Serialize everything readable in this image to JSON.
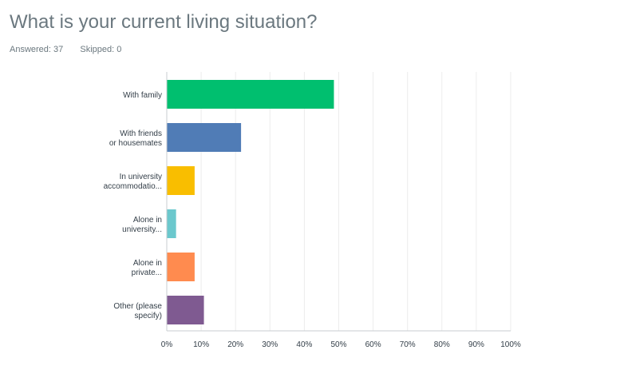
{
  "question": {
    "title": "What is your current living situation?"
  },
  "stats": {
    "answered_label": "Answered:",
    "answered_value": "37",
    "skipped_label": "Skipped:",
    "skipped_value": "0"
  },
  "chart_data": {
    "type": "bar",
    "orientation": "horizontal",
    "categories": [
      [
        "With family"
      ],
      [
        "With friends",
        "or housemates"
      ],
      [
        "In university",
        "accommodatio..."
      ],
      [
        "Alone in",
        "university..."
      ],
      [
        "Alone in",
        "private..."
      ],
      [
        "Other (please",
        "specify)"
      ]
    ],
    "values": [
      48.6,
      21.6,
      8.1,
      2.7,
      8.1,
      10.8
    ],
    "colors": [
      "#00bf6f",
      "#507cb6",
      "#f9be00",
      "#6bc8cd",
      "#ff8b4f",
      "#7f5a91"
    ],
    "xlim": [
      0,
      100
    ],
    "xticks": [
      "0%",
      "10%",
      "20%",
      "30%",
      "40%",
      "50%",
      "60%",
      "70%",
      "80%",
      "90%",
      "100%"
    ],
    "grid": true
  }
}
